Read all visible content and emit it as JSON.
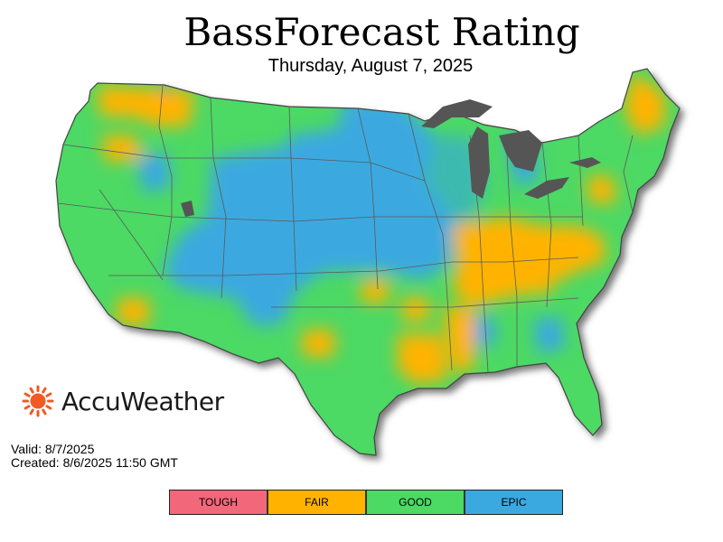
{
  "header": {
    "title": "BassForecast Rating",
    "date": "Thursday, August 7, 2025"
  },
  "brand": {
    "name": "AccuWeather",
    "sun_color": "#f15a24"
  },
  "meta": {
    "valid": "Valid: 8/7/2025",
    "created": "Created: 8/6/2025 11:50 GMT"
  },
  "legend": [
    {
      "label": "TOUGH",
      "color": "#f2677a"
    },
    {
      "label": "FAIR",
      "color": "#ffb300"
    },
    {
      "label": "GOOD",
      "color": "#4cd964"
    },
    {
      "label": "EPIC",
      "color": "#3aa9e0"
    }
  ],
  "map": {
    "lakes_color": "#555555",
    "border_color": "#5a5a5a"
  }
}
